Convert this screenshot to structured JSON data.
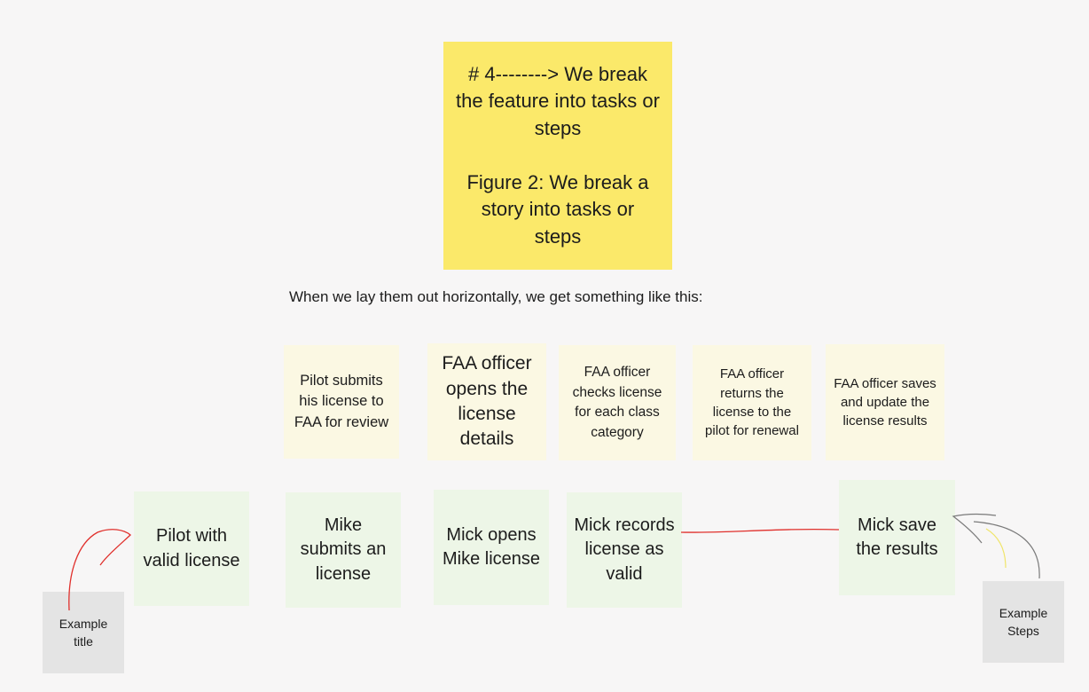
{
  "main_note": {
    "text": "# 4--------> We break the feature into tasks or steps\n\nFigure 2: We break a story into tasks or steps"
  },
  "caption": "When we lay them out horizontally, we get something like this:",
  "tasks": [
    "Pilot submits his license to FAA for review",
    "FAA officer opens the license details",
    "FAA officer checks license for each class category",
    "FAA officer returns the license to the pilot for renewal",
    "FAA officer saves and update the license results"
  ],
  "steps": [
    "Pilot with valid license",
    "Mike submits an license",
    "Mick opens Mike license",
    "Mick records license as valid",
    "Mick save the results"
  ],
  "labels": {
    "example_title": "Example\ntitle",
    "example_steps": "Example\nSteps"
  },
  "colors": {
    "main_note": "#fbe96a",
    "task_note": "#fbf8e3",
    "step_note": "#edf6e7",
    "label_note": "#e4e4e4",
    "red_connector": "#e0302c",
    "gray_connector": "#7a7a7a"
  }
}
